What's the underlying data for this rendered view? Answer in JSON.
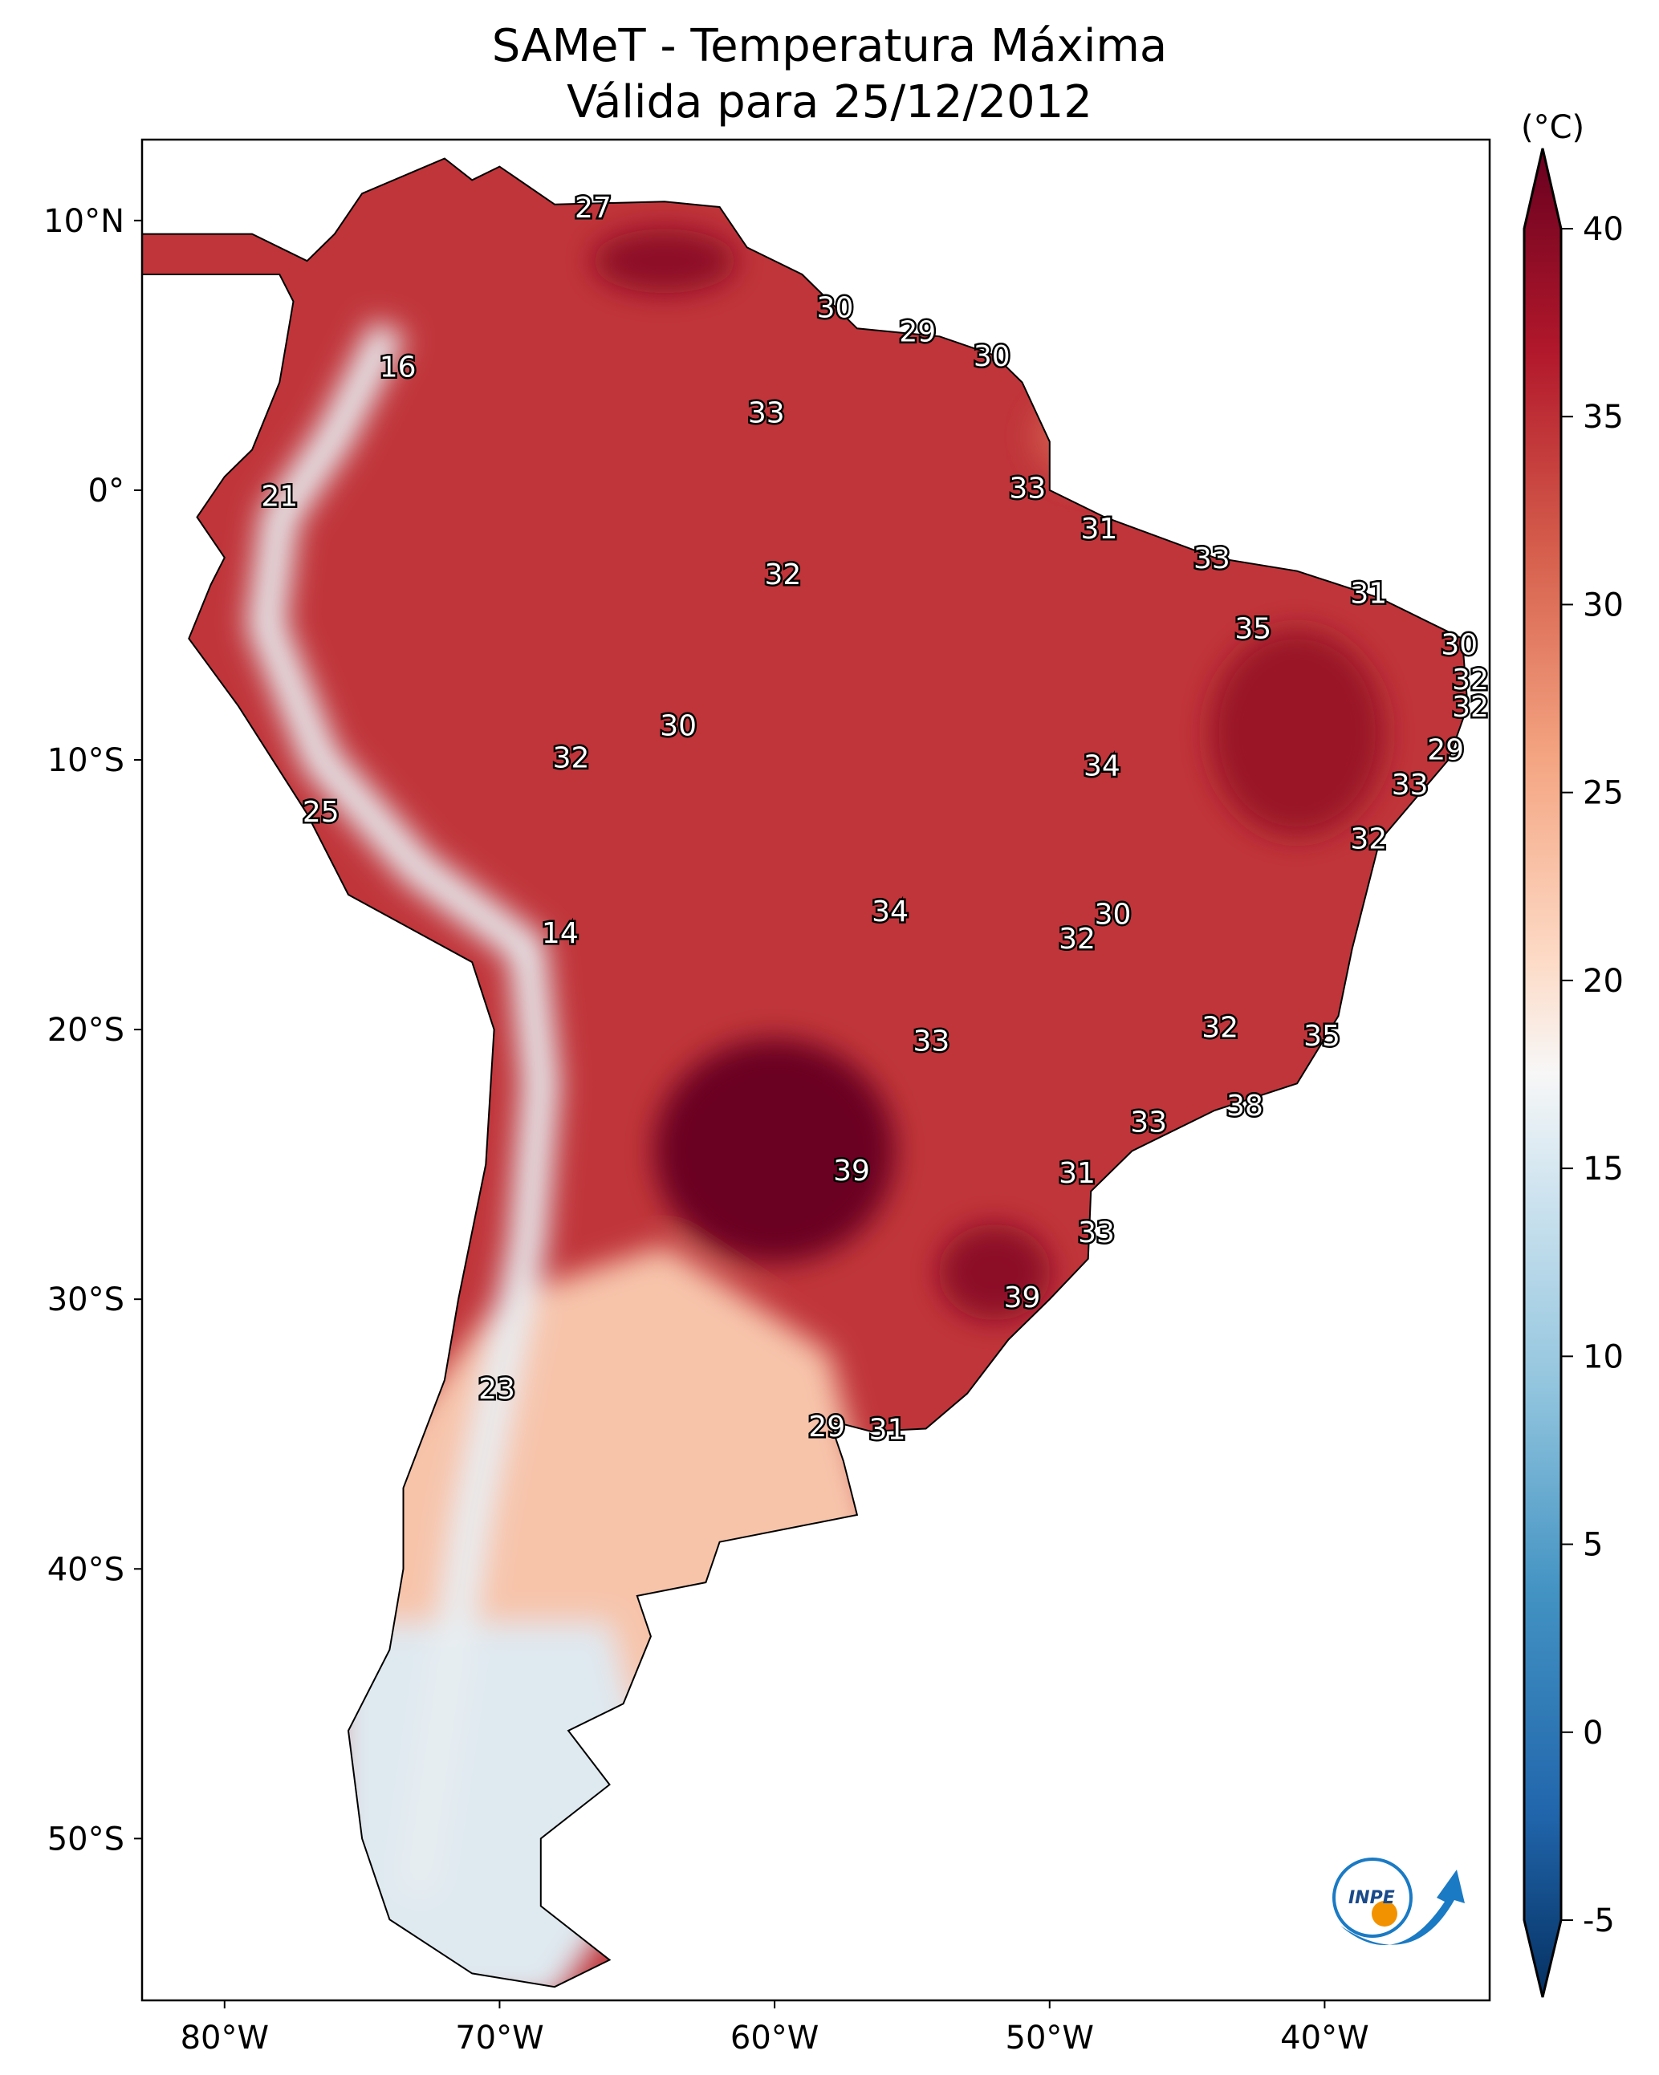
{
  "title": "SAMeT - Temperatura Máxima",
  "subtitle": "Válida para 25/12/2012",
  "chart_data": {
    "type": "map",
    "title": "SAMeT - Temperatura Máxima",
    "subtitle": "Válida para 25/12/2012",
    "lon_range": [
      -83,
      -34
    ],
    "lat_range": [
      -56,
      13
    ],
    "lon_ticks": [
      {
        "v": -80,
        "label": "80°W"
      },
      {
        "v": -70,
        "label": "70°W"
      },
      {
        "v": -60,
        "label": "60°W"
      },
      {
        "v": -50,
        "label": "50°W"
      },
      {
        "v": -40,
        "label": "40°W"
      }
    ],
    "lat_ticks": [
      {
        "v": 10,
        "label": "10°N"
      },
      {
        "v": 0,
        "label": "0°"
      },
      {
        "v": -10,
        "label": "10°S"
      },
      {
        "v": -20,
        "label": "20°S"
      },
      {
        "v": -30,
        "label": "30°S"
      },
      {
        "v": -40,
        "label": "40°S"
      },
      {
        "v": -50,
        "label": "50°S"
      }
    ],
    "colorbar": {
      "unit": "(°C)",
      "colormap": "RdBu_r",
      "range": [
        -5,
        40
      ],
      "extend": "both",
      "ticks": [
        40,
        35,
        30,
        25,
        20,
        15,
        10,
        5,
        0,
        -5
      ],
      "tick_labels": [
        "40",
        "35",
        "30",
        "25",
        "20",
        "15",
        "10",
        "5",
        "0",
        "-5"
      ]
    },
    "station_labels": [
      {
        "lon": -66.6,
        "lat": 10.5,
        "value": "27"
      },
      {
        "lon": -57.8,
        "lat": 6.8,
        "value": "30"
      },
      {
        "lon": -54.8,
        "lat": 5.9,
        "value": "29"
      },
      {
        "lon": -52.1,
        "lat": 5.0,
        "value": "30"
      },
      {
        "lon": -73.7,
        "lat": 4.6,
        "value": "16"
      },
      {
        "lon": -60.3,
        "lat": 2.9,
        "value": "33"
      },
      {
        "lon": -50.8,
        "lat": 0.1,
        "value": "33"
      },
      {
        "lon": -78.0,
        "lat": -0.2,
        "value": "21"
      },
      {
        "lon": -48.2,
        "lat": -1.4,
        "value": "31"
      },
      {
        "lon": -44.1,
        "lat": -2.5,
        "value": "33"
      },
      {
        "lon": -59.7,
        "lat": -3.1,
        "value": "32"
      },
      {
        "lon": -38.4,
        "lat": -3.8,
        "value": "31"
      },
      {
        "lon": -42.6,
        "lat": -5.1,
        "value": "35"
      },
      {
        "lon": -35.1,
        "lat": -5.7,
        "value": "30"
      },
      {
        "lon": -34.7,
        "lat": -7.0,
        "value": "32"
      },
      {
        "lon": -34.7,
        "lat": -8.0,
        "value": "32"
      },
      {
        "lon": -63.5,
        "lat": -8.7,
        "value": "30"
      },
      {
        "lon": -35.6,
        "lat": -9.6,
        "value": "29"
      },
      {
        "lon": -67.4,
        "lat": -9.9,
        "value": "32"
      },
      {
        "lon": -48.1,
        "lat": -10.2,
        "value": "34"
      },
      {
        "lon": -36.9,
        "lat": -10.9,
        "value": "33"
      },
      {
        "lon": -76.5,
        "lat": -11.9,
        "value": "25"
      },
      {
        "lon": -38.4,
        "lat": -12.9,
        "value": "32"
      },
      {
        "lon": -55.8,
        "lat": -15.6,
        "value": "34"
      },
      {
        "lon": -47.7,
        "lat": -15.7,
        "value": "30"
      },
      {
        "lon": -67.8,
        "lat": -16.4,
        "value": "14"
      },
      {
        "lon": -49.0,
        "lat": -16.6,
        "value": "32"
      },
      {
        "lon": -43.8,
        "lat": -19.9,
        "value": "32"
      },
      {
        "lon": -40.1,
        "lat": -20.2,
        "value": "35"
      },
      {
        "lon": -54.3,
        "lat": -20.4,
        "value": "33"
      },
      {
        "lon": -42.9,
        "lat": -22.8,
        "value": "38"
      },
      {
        "lon": -46.4,
        "lat": -23.4,
        "value": "33"
      },
      {
        "lon": -57.2,
        "lat": -25.2,
        "value": "39"
      },
      {
        "lon": -49.0,
        "lat": -25.3,
        "value": "31"
      },
      {
        "lon": -48.3,
        "lat": -27.5,
        "value": "33"
      },
      {
        "lon": -51.0,
        "lat": -29.9,
        "value": "39"
      },
      {
        "lon": -70.1,
        "lat": -33.3,
        "value": "23"
      },
      {
        "lon": -58.1,
        "lat": -34.7,
        "value": "29"
      },
      {
        "lon": -55.9,
        "lat": -34.8,
        "value": "31"
      }
    ]
  },
  "logo": {
    "text": "INPE",
    "colors": {
      "blue": "#1a7ac4",
      "orange": "#f39200"
    }
  }
}
